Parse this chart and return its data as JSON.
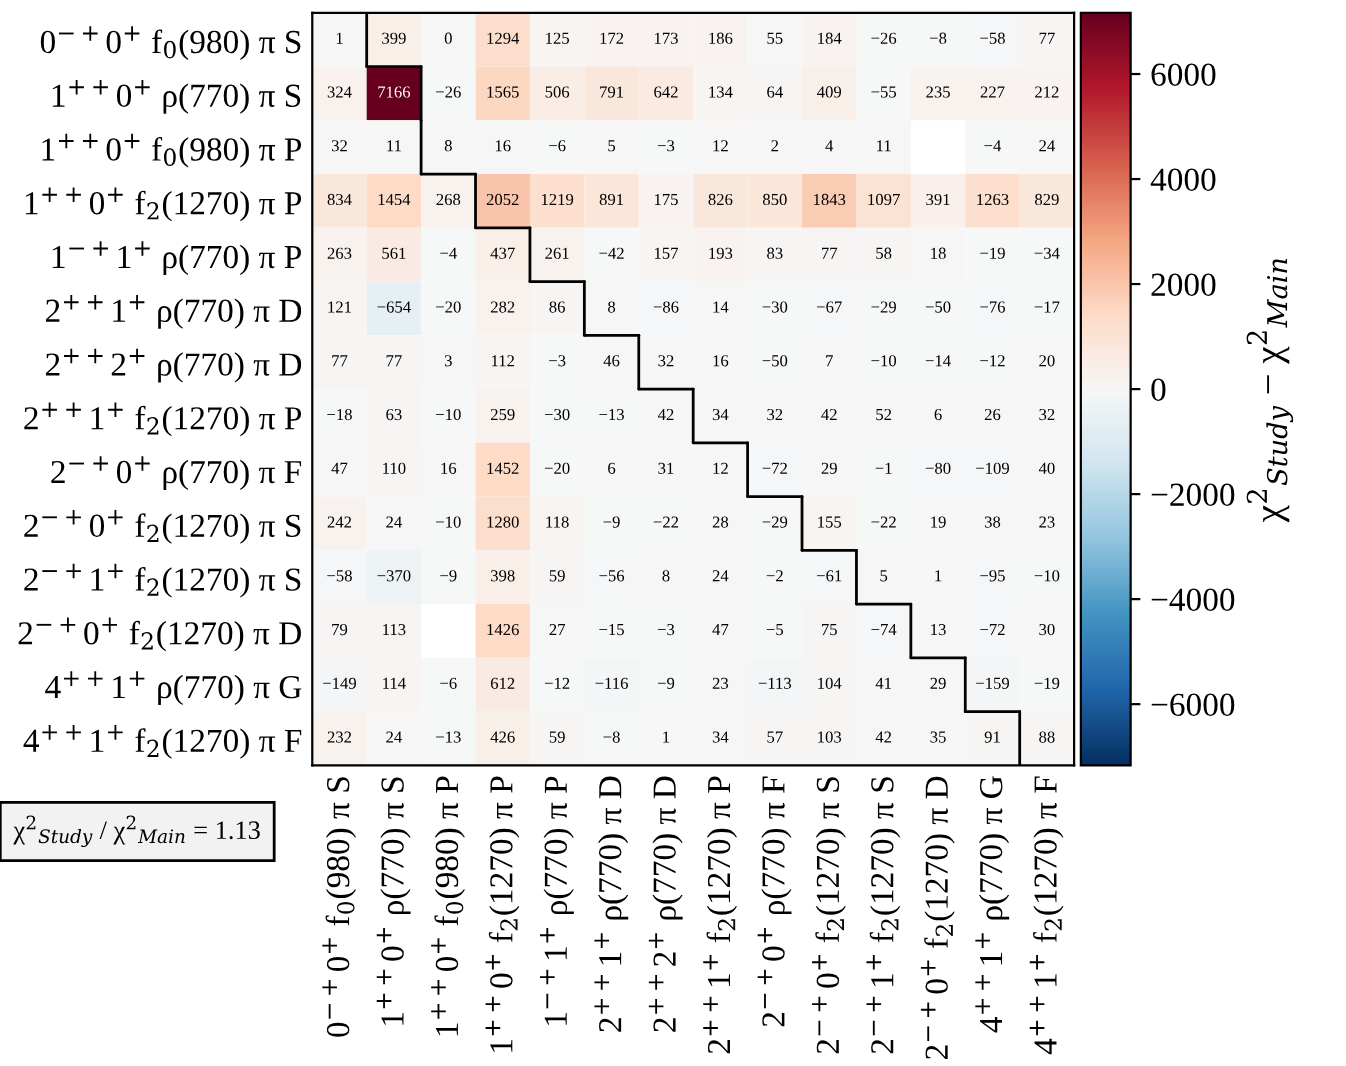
{
  "chart_data": {
    "type": "heatmap",
    "categories": [
      "0$^{−+}$0$^{+}$ f$_{0}$(980) π S",
      "1$^{++}$0$^{+}$ ρ(770) π S",
      "1$^{++}$0$^{+}$ f$_{0}$(980) π P",
      "1$^{++}$0$^{+}$ f$_{2}$(1270) π P",
      "1$^{−+}$1$^{+}$ ρ(770) π P",
      "2$^{++}$1$^{+}$ ρ(770) π D",
      "2$^{++}$2$^{+}$ ρ(770) π D",
      "2$^{++}$1$^{+}$ f$_{2}$(1270) π P",
      "2$^{−+}$0$^{+}$ ρ(770) π F",
      "2$^{−+}$0$^{+}$ f$_{2}$(1270) π S",
      "2$^{−+}$1$^{+}$ f$_{2}$(1270) π S",
      "2$^{−+}$0$^{+}$ f$_{2}$(1270) π D",
      "4$^{++}$1$^{+}$ ρ(770) π G",
      "4$^{++}$1$^{+}$ f$_{2}$(1270) π F"
    ],
    "y_categories": [
      "0$^{−+}$0$^{+}$ f$_{0}$(980) π S",
      "1$^{++}$0$^{+}$ ρ(770) π S",
      "1$^{++}$0$^{+}$ f$_{0}$(980) π P",
      "1$^{++}$0$^{+}$ f$_{2}$(1270) π P",
      "1$^{−+}$1$^{+}$ ρ(770) π P",
      "2$^{++}$1$^{+}$ ρ(770) π D",
      "2$^{++}$2$^{+}$ ρ(770) π D",
      "2$^{++}$1$^{+}$ f$_{2}$(1270) π P",
      "2$^{−+}$0$^{+}$ ρ(770) π F",
      "2$^{−+}$0$^{+}$ f$_{2}$(1270) π S",
      "2$^{−+}$1$^{+}$ f$_{2}$(1270) π S",
      "2$^{−+}$0$^{+}$ f$_{2}$(1270) π D",
      "4$^{++}$1$^{+}$ ρ(770) π G",
      "4$^{++}$1$^{+}$ f$_{2}$(1270) π F"
    ],
    "cells": [
      [
        1,
        399,
        0,
        1294,
        125,
        172,
        173,
        186,
        55,
        184,
        -26,
        -8,
        -58,
        77
      ],
      [
        324,
        7166,
        -26,
        1565,
        506,
        791,
        642,
        134,
        64,
        409,
        -55,
        235,
        227,
        212
      ],
      [
        32,
        11,
        8,
        16,
        -6,
        5,
        -3,
        12,
        2,
        4,
        11,
        null,
        -4,
        24
      ],
      [
        834,
        1454,
        268,
        2052,
        1219,
        891,
        175,
        826,
        850,
        1843,
        1097,
        391,
        1263,
        829
      ],
      [
        263,
        561,
        -4,
        437,
        261,
        -42,
        157,
        193,
        83,
        77,
        58,
        18,
        -19,
        -34
      ],
      [
        121,
        -654,
        -20,
        282,
        86,
        8,
        -86,
        14,
        -30,
        -67,
        -29,
        -50,
        -76,
        -17
      ],
      [
        77,
        77,
        3,
        112,
        -3,
        46,
        32,
        16,
        -50,
        7,
        -10,
        -14,
        -12,
        20
      ],
      [
        -18,
        63,
        -10,
        259,
        -30,
        -13,
        42,
        34,
        32,
        42,
        52,
        6,
        26,
        32
      ],
      [
        47,
        110,
        16,
        1452,
        -20,
        6,
        31,
        12,
        -72,
        29,
        -1,
        -80,
        -109,
        40
      ],
      [
        242,
        24,
        -10,
        1280,
        118,
        -9,
        -22,
        28,
        -29,
        155,
        -22,
        19,
        38,
        23
      ],
      [
        -58,
        -370,
        -9,
        398,
        59,
        -56,
        8,
        24,
        -2,
        -61,
        5,
        1,
        -95,
        -10
      ],
      [
        79,
        113,
        null,
        1426,
        27,
        -15,
        -3,
        47,
        -5,
        75,
        -74,
        13,
        -72,
        30
      ],
      [
        -149,
        114,
        -6,
        612,
        -12,
        -116,
        -9,
        23,
        -113,
        104,
        41,
        29,
        -159,
        -19
      ],
      [
        232,
        24,
        -13,
        426,
        59,
        -8,
        1,
        34,
        57,
        103,
        42,
        35,
        91,
        88
      ]
    ],
    "data_labels": true,
    "clim": [
      -7166,
      7166
    ],
    "cticks": [
      -6000,
      -4000,
      -2000,
      0,
      2000,
      4000,
      6000
    ],
    "clabel": "χ$^{2}$$_{Study}$ − χ$^{2}$$_{Main}$",
    "annotations": [
      "χ$^{2}$$_{Study}$ / χ$^{2}$$_{Main}$ = 1.13"
    ]
  }
}
